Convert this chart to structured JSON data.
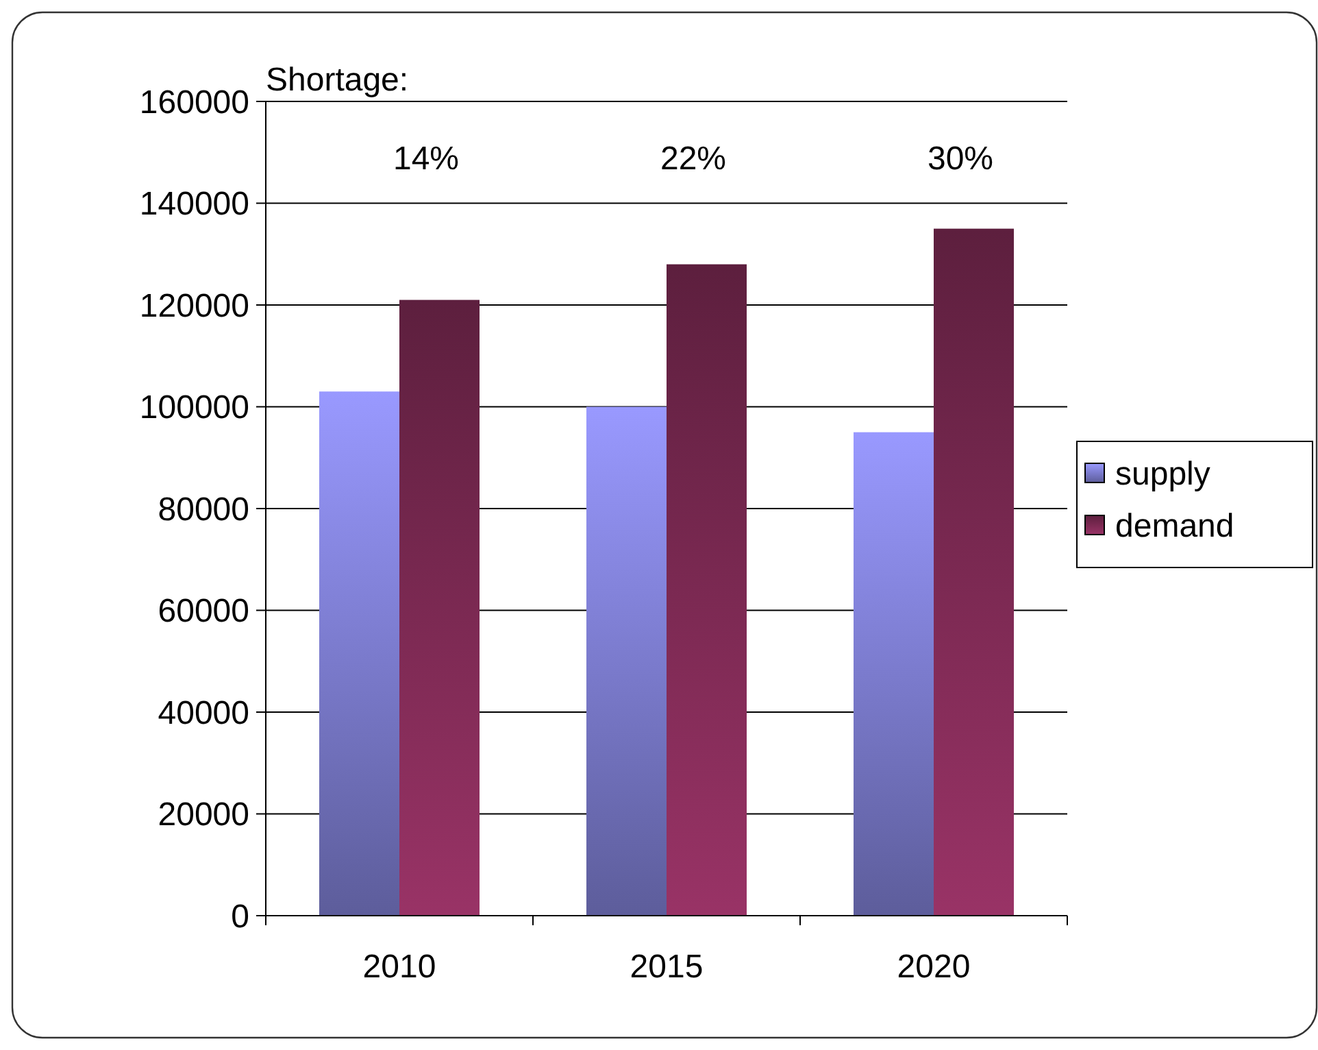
{
  "chart_data": {
    "type": "bar",
    "categories": [
      "2010",
      "2015",
      "2020"
    ],
    "series": [
      {
        "name": "supply",
        "color": "#9999ff",
        "values": [
          103000,
          100000,
          95000
        ]
      },
      {
        "name": "demand",
        "color": "#993366",
        "values": [
          121000,
          128000,
          135000
        ]
      }
    ],
    "ylim": [
      0,
      160000
    ],
    "yticks": [
      0,
      20000,
      40000,
      60000,
      80000,
      100000,
      120000,
      140000,
      160000
    ],
    "grid": "y",
    "legend": "right",
    "annotations": [
      "Shortage:",
      "14%",
      "22%",
      "30%"
    ]
  }
}
